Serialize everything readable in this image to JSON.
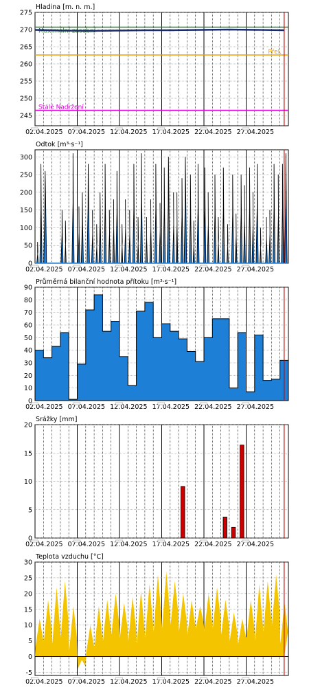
{
  "colors": {
    "frame": "#000000",
    "grid": "#000000",
    "now_line": "#d00000",
    "level_line": "#1a2a6b",
    "level_max": "#2e7d32",
    "level_flood": "#f0a000",
    "level_min": "#e000e0",
    "outflow_fill": "#1e7fd6",
    "outflow_line": "#000000",
    "inflow_fill": "#1e7fd6",
    "rain_fill": "#cc0000",
    "temp_fill": "#f5c400"
  },
  "x_labels": [
    "02.04.2025",
    "07.04.2025",
    "12.04.2025",
    "17.04.2025",
    "22.04.2025",
    "27.04.2025"
  ],
  "chart_data": [
    {
      "id": "level",
      "type": "line",
      "title": "Hladina [m. n. m.]",
      "ylim": [
        242,
        275
      ],
      "yticks": [
        245,
        250,
        255,
        260,
        265,
        270,
        275
      ],
      "refs": [
        {
          "label": "Maximální zásobní",
          "value": 270.7,
          "color": "level_max"
        },
        {
          "label": "Přel.",
          "value": 262.6,
          "color": "level_flood"
        },
        {
          "label": "Stálé Nadržení",
          "value": 246.5,
          "color": "level_min"
        }
      ],
      "series": [
        {
          "values": [
            269.9,
            269.7,
            269.6,
            269.7,
            269.8,
            269.8,
            269.9,
            270.0,
            269.9,
            269.8
          ]
        }
      ]
    },
    {
      "id": "outflow",
      "type": "area",
      "title": "Odtok [m³·s⁻¹]",
      "ylim": [
        0,
        320
      ],
      "yticks": [
        0,
        50,
        100,
        150,
        200,
        250,
        300
      ],
      "peaks": [
        [
          0.3,
          60,
          4
        ],
        [
          0.7,
          280,
          6
        ],
        [
          1.2,
          260,
          8
        ],
        [
          3.2,
          150,
          6
        ],
        [
          3.6,
          120,
          4
        ],
        [
          4.5,
          310,
          6
        ],
        [
          5.2,
          160,
          5
        ],
        [
          5.6,
          200,
          6
        ],
        [
          6.3,
          280,
          7
        ],
        [
          6.8,
          150,
          5
        ],
        [
          7.3,
          110,
          4
        ],
        [
          7.7,
          200,
          6
        ],
        [
          8.3,
          280,
          6
        ],
        [
          8.8,
          150,
          5
        ],
        [
          9.3,
          180,
          5
        ],
        [
          9.7,
          260,
          6
        ],
        [
          10.3,
          110,
          4
        ],
        [
          10.7,
          180,
          5
        ],
        [
          11.2,
          150,
          5
        ],
        [
          11.7,
          280,
          6
        ],
        [
          12.2,
          130,
          4
        ],
        [
          12.6,
          310,
          6
        ],
        [
          13.2,
          130,
          5
        ],
        [
          13.7,
          180,
          5
        ],
        [
          14.3,
          280,
          6
        ],
        [
          14.8,
          170,
          5
        ],
        [
          15.3,
          270,
          6
        ],
        [
          15.8,
          300,
          7
        ],
        [
          16.4,
          200,
          5
        ],
        [
          16.8,
          200,
          5
        ],
        [
          17.4,
          240,
          6
        ],
        [
          17.8,
          300,
          7
        ],
        [
          18.4,
          250,
          6
        ],
        [
          18.8,
          120,
          4
        ],
        [
          19.3,
          280,
          6
        ],
        [
          20.1,
          270,
          6
        ],
        [
          20.5,
          200,
          5
        ],
        [
          21.3,
          250,
          6
        ],
        [
          21.7,
          130,
          4
        ],
        [
          22.3,
          270,
          6
        ],
        [
          22.8,
          110,
          4
        ],
        [
          23.4,
          250,
          6
        ],
        [
          23.8,
          140,
          5
        ],
        [
          24.4,
          250,
          6
        ],
        [
          24.8,
          220,
          5
        ],
        [
          25.4,
          270,
          6
        ],
        [
          25.8,
          200,
          5
        ],
        [
          26.3,
          280,
          6
        ],
        [
          26.7,
          100,
          4
        ],
        [
          27.4,
          130,
          5
        ],
        [
          27.8,
          150,
          5
        ],
        [
          28.3,
          280,
          6
        ],
        [
          28.8,
          250,
          5
        ],
        [
          29.3,
          280,
          6
        ],
        [
          29.7,
          310,
          7
        ]
      ]
    },
    {
      "id": "inflow",
      "type": "step-area",
      "title": "Průměrná bilanční hodnota přítoku   [m³·s⁻¹]",
      "ylim": [
        0,
        90
      ],
      "yticks": [
        0,
        10,
        20,
        30,
        40,
        50,
        60,
        70,
        80,
        90
      ],
      "values": [
        40,
        34,
        43,
        54,
        1,
        29,
        72,
        84,
        55,
        63,
        35,
        12,
        71,
        78,
        50,
        61,
        55,
        49,
        39,
        31,
        50,
        65,
        65,
        10,
        54,
        7,
        52,
        16,
        17,
        32
      ]
    },
    {
      "id": "rain",
      "type": "bar",
      "title": "Srážky [mm]",
      "ylim": [
        0,
        20
      ],
      "yticks": [
        0,
        5,
        10,
        15,
        20
      ],
      "values": [
        0,
        0,
        0,
        0,
        0,
        0,
        0,
        0,
        0,
        0,
        0,
        0,
        0,
        0,
        0,
        0,
        0,
        0,
        0,
        0,
        0,
        0,
        0,
        0,
        0,
        0,
        0,
        0,
        0,
        0
      ],
      "bars": [
        [
          17,
          9.1
        ],
        [
          22,
          3.7
        ],
        [
          23,
          1.9
        ],
        [
          24,
          16.4
        ]
      ]
    },
    {
      "id": "temp",
      "type": "area",
      "title": "Teplota vzduchu [°C]",
      "ylim": [
        -6,
        30
      ],
      "yticks": [
        -5,
        0,
        5,
        10,
        15,
        20,
        25,
        30
      ],
      "day_max": [
        12,
        18,
        22,
        24,
        16,
        -1,
        10,
        16,
        18,
        20,
        17,
        19,
        21,
        23,
        26,
        27,
        24,
        20,
        18,
        16,
        20,
        22,
        18,
        14,
        12,
        18,
        23,
        24,
        26,
        17
      ],
      "day_min": [
        3,
        5,
        4,
        6,
        2,
        -4,
        1,
        3,
        5,
        7,
        6,
        5,
        4,
        6,
        8,
        9,
        10,
        8,
        7,
        9,
        8,
        9,
        7,
        5,
        4,
        6,
        5,
        8,
        10,
        4
      ]
    }
  ]
}
